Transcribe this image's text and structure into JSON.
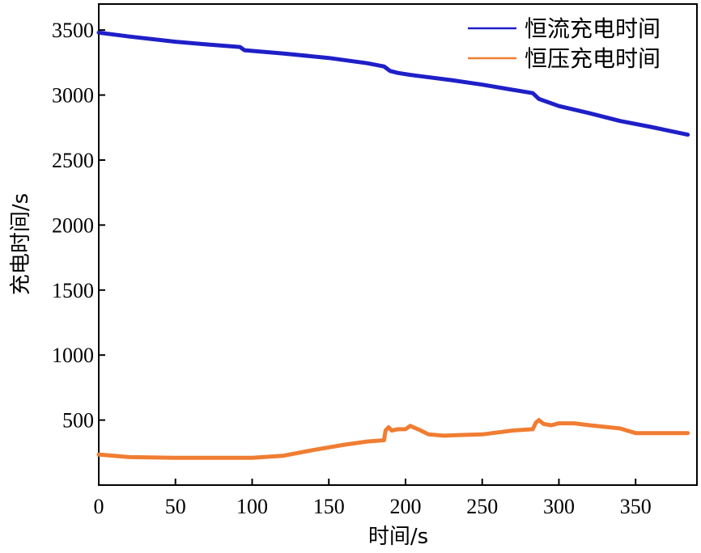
{
  "chart_data": {
    "type": "line",
    "xlabel": "时间/s",
    "ylabel": "充电时间/s",
    "xlim": [
      0,
      390
    ],
    "ylim": [
      0,
      3700
    ],
    "xticks": [
      0,
      50,
      100,
      150,
      200,
      250,
      300,
      350
    ],
    "yticks": [
      500,
      1000,
      1500,
      2000,
      2500,
      3000,
      3500
    ],
    "grid": false,
    "legend_position": "top-right",
    "series": [
      {
        "name": "恒流充电时间",
        "color": "#1f1fc8",
        "x": [
          0,
          20,
          50,
          70,
          92,
          95,
          120,
          150,
          175,
          186,
          190,
          195,
          203,
          210,
          230,
          250,
          270,
          283,
          287,
          300,
          320,
          340,
          360,
          372,
          384
        ],
        "y": [
          3480,
          3450,
          3410,
          3390,
          3370,
          3345,
          3320,
          3285,
          3245,
          3220,
          3185,
          3170,
          3155,
          3145,
          3115,
          3080,
          3040,
          3015,
          2970,
          2915,
          2860,
          2800,
          2755,
          2725,
          2695
        ]
      },
      {
        "name": "恒压充电时间",
        "color": "#f07d32",
        "x": [
          0,
          20,
          50,
          70,
          90,
          100,
          120,
          140,
          160,
          175,
          186,
          187,
          189,
          191,
          195,
          200,
          203,
          206,
          210,
          215,
          225,
          235,
          250,
          270,
          283,
          285,
          287,
          290,
          295,
          300,
          310,
          320,
          340,
          350,
          360,
          375,
          384
        ],
        "y": [
          235,
          215,
          210,
          210,
          210,
          210,
          225,
          270,
          310,
          335,
          345,
          420,
          445,
          420,
          430,
          430,
          455,
          440,
          420,
          390,
          380,
          385,
          390,
          420,
          430,
          480,
          500,
          470,
          460,
          475,
          475,
          460,
          435,
          400,
          400,
          400,
          400
        ]
      }
    ]
  },
  "colors": {
    "axis": "#000000",
    "background": "#ffffff"
  }
}
